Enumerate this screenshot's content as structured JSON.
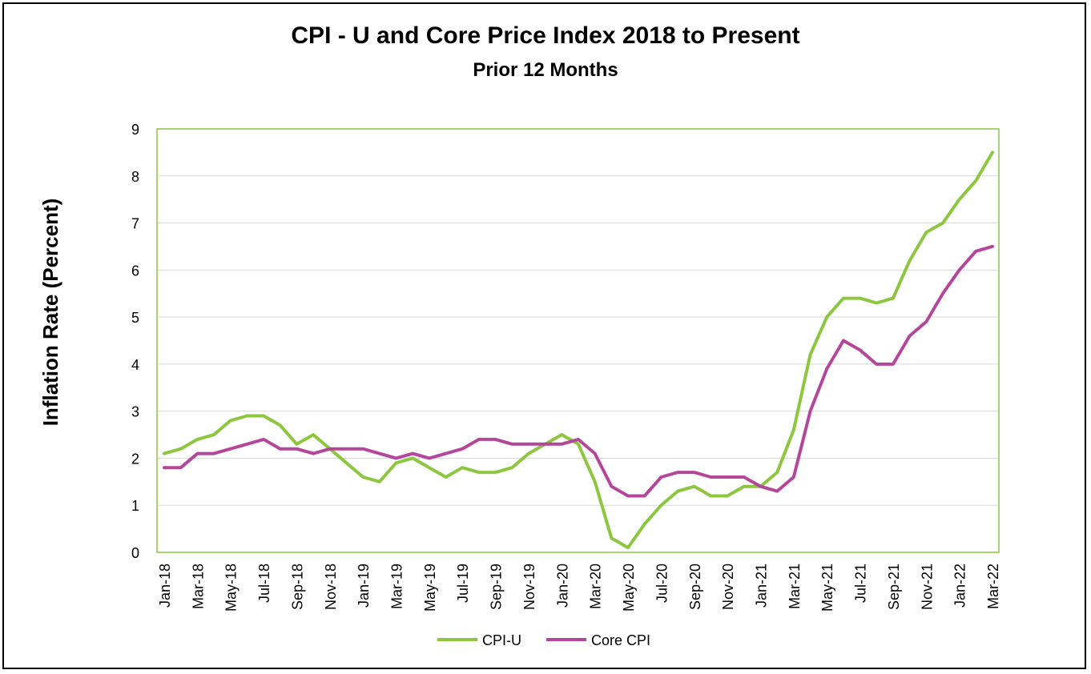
{
  "chart_data": {
    "type": "line",
    "title": "CPI - U and Core Price Index 2018 to Present",
    "subtitle": "Prior 12 Months",
    "xlabel": "",
    "ylabel": "Inflation Rate (Percent)",
    "ylim": [
      0,
      9
    ],
    "yticks": [
      "0",
      "1",
      "2",
      "3",
      "4",
      "5",
      "6",
      "7",
      "8",
      "9"
    ],
    "grid": true,
    "legend_position": "bottom",
    "x": [
      "Jan-18",
      "Feb-18",
      "Mar-18",
      "Apr-18",
      "May-18",
      "Jun-18",
      "Jul-18",
      "Aug-18",
      "Sep-18",
      "Oct-18",
      "Nov-18",
      "Dec-18",
      "Jan-19",
      "Feb-19",
      "Mar-19",
      "Apr-19",
      "May-19",
      "Jun-19",
      "Jul-19",
      "Aug-19",
      "Sep-19",
      "Oct-19",
      "Nov-19",
      "Dec-19",
      "Jan-20",
      "Feb-20",
      "Mar-20",
      "Apr-20",
      "May-20",
      "Jun-20",
      "Jul-20",
      "Aug-20",
      "Sep-20",
      "Oct-20",
      "Nov-20",
      "Dec-20",
      "Jan-21",
      "Feb-21",
      "Mar-21",
      "Apr-21",
      "May-21",
      "Jun-21",
      "Jul-21",
      "Aug-21",
      "Sep-21",
      "Oct-21",
      "Nov-21",
      "Dec-21",
      "Jan-22",
      "Feb-22",
      "Mar-22"
    ],
    "xtick_labels": [
      "Jan-18",
      "Mar-18",
      "May-18",
      "Jul-18",
      "Sep-18",
      "Nov-18",
      "Jan-19",
      "Mar-19",
      "May-19",
      "Jul-19",
      "Sep-19",
      "Nov-19",
      "Jan-20",
      "Mar-20",
      "May-20",
      "Jul-20",
      "Sep-20",
      "Nov-20",
      "Jan-21",
      "Mar-21",
      "May-21",
      "Jul-21",
      "Sep-21",
      "Nov-21",
      "Jan-22",
      "Mar-22"
    ],
    "series": [
      {
        "name": "CPI-U",
        "color": "#8dc63f",
        "values": [
          2.1,
          2.2,
          2.4,
          2.5,
          2.8,
          2.9,
          2.9,
          2.7,
          2.3,
          2.5,
          2.2,
          1.9,
          1.6,
          1.5,
          1.9,
          2.0,
          1.8,
          1.6,
          1.8,
          1.7,
          1.7,
          1.8,
          2.1,
          2.3,
          2.5,
          2.3,
          1.5,
          0.3,
          0.1,
          0.6,
          1.0,
          1.3,
          1.4,
          1.2,
          1.2,
          1.4,
          1.4,
          1.7,
          2.6,
          4.2,
          5.0,
          5.4,
          5.4,
          5.3,
          5.4,
          6.2,
          6.8,
          7.0,
          7.5,
          7.9,
          8.5
        ]
      },
      {
        "name": "Core CPI",
        "color": "#b5479b",
        "values": [
          1.8,
          1.8,
          2.1,
          2.1,
          2.2,
          2.3,
          2.4,
          2.2,
          2.2,
          2.1,
          2.2,
          2.2,
          2.2,
          2.1,
          2.0,
          2.1,
          2.0,
          2.1,
          2.2,
          2.4,
          2.4,
          2.3,
          2.3,
          2.3,
          2.3,
          2.4,
          2.1,
          1.4,
          1.2,
          1.2,
          1.6,
          1.7,
          1.7,
          1.6,
          1.6,
          1.6,
          1.4,
          1.3,
          1.6,
          3.0,
          3.9,
          4.5,
          4.3,
          4.0,
          4.0,
          4.6,
          4.9,
          5.5,
          6.0,
          6.4,
          6.5
        ]
      }
    ]
  }
}
